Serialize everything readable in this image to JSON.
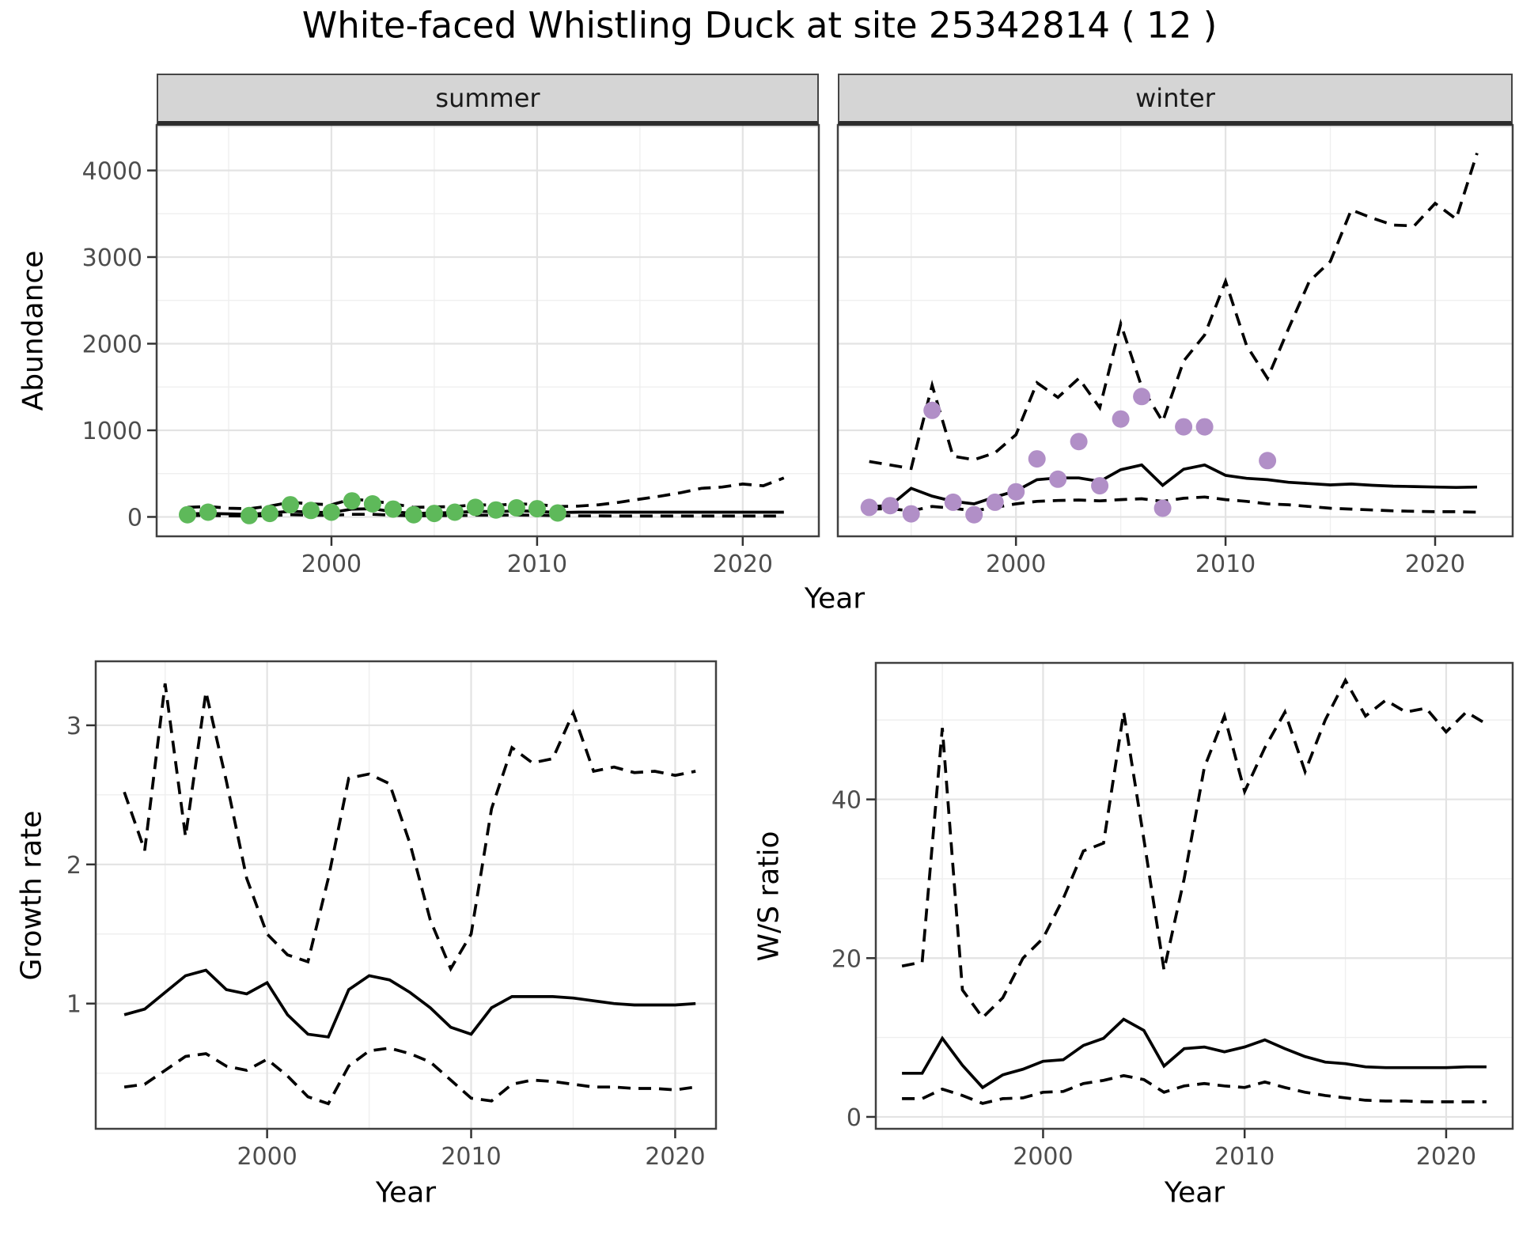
{
  "title": "White-faced Whistling Duck at site 25342814 ( 12 )",
  "colors": {
    "summer_points": "#5EB95A",
    "winter_points": "#B18FC7",
    "line": "#000000",
    "grid_major": "#E3E3E3",
    "grid_minor": "#EFEFEF",
    "strip_bg": "#D5D5D5",
    "tick_text": "#4D4D4D",
    "panel_border": "#404040"
  },
  "chart_data": [
    {
      "id": "abundance-summer",
      "type": "line",
      "facet_label": "summer",
      "xlabel": "Year",
      "ylabel": "Abundance",
      "x": [
        1993,
        1994,
        1995,
        1996,
        1997,
        1998,
        1999,
        2000,
        2001,
        2002,
        2003,
        2004,
        2005,
        2006,
        2007,
        2008,
        2009,
        2010,
        2011,
        2012,
        2013,
        2014,
        2015,
        2016,
        2017,
        2018,
        2019,
        2020,
        2021,
        2022
      ],
      "series": [
        {
          "name": "upper_ci",
          "style": "dashed",
          "values": [
            110,
            120,
            100,
            95,
            125,
            170,
            150,
            140,
            205,
            185,
            150,
            110,
            115,
            120,
            140,
            135,
            150,
            145,
            120,
            125,
            140,
            170,
            205,
            240,
            280,
            330,
            345,
            380,
            360,
            450
          ]
        },
        {
          "name": "median",
          "style": "solid",
          "values": [
            35,
            40,
            35,
            30,
            45,
            65,
            55,
            50,
            90,
            95,
            60,
            40,
            45,
            50,
            65,
            60,
            70,
            65,
            50,
            55,
            55,
            55,
            55,
            55,
            55,
            55,
            55,
            55,
            55,
            55
          ]
        },
        {
          "name": "lower_ci",
          "style": "dashed",
          "values": [
            15,
            18,
            12,
            10,
            15,
            25,
            20,
            18,
            30,
            30,
            20,
            12,
            15,
            15,
            20,
            20,
            22,
            20,
            15,
            12,
            12,
            10,
            10,
            10,
            10,
            10,
            10,
            10,
            10,
            10
          ]
        }
      ],
      "points": {
        "name": "observed-counts-summer",
        "color_key": "summer_points",
        "years": [
          1993,
          1994,
          1996,
          1997,
          1998,
          1999,
          2000,
          2001,
          2002,
          2003,
          2004,
          2005,
          2006,
          2007,
          2008,
          2009,
          2010,
          2011
        ],
        "values": [
          25,
          55,
          15,
          40,
          140,
          75,
          55,
          185,
          150,
          90,
          25,
          40,
          55,
          110,
          80,
          105,
          95,
          45
        ]
      },
      "xlim": [
        1991.5,
        2023.7
      ],
      "ylim": [
        -224,
        4525
      ],
      "xticks": [
        2000,
        2010,
        2020
      ],
      "xtick_labels": [
        "2000",
        "2010",
        "2020"
      ],
      "x_minor": [
        1995,
        2005,
        2015
      ],
      "yticks": [
        0,
        1000,
        2000,
        3000,
        4000
      ],
      "ytick_labels": [
        "0",
        "1000",
        "2000",
        "3000",
        "4000"
      ],
      "y_minor": [
        500,
        1500,
        2500,
        3500,
        4500
      ],
      "grid": true,
      "legend": "none"
    },
    {
      "id": "abundance-winter",
      "type": "line",
      "facet_label": "winter",
      "xlabel": "Year",
      "ylabel": "Abundance",
      "x": [
        1993,
        1994,
        1995,
        1996,
        1997,
        1998,
        1999,
        2000,
        2001,
        2002,
        2003,
        2004,
        2005,
        2006,
        2007,
        2008,
        2009,
        2010,
        2011,
        2012,
        2013,
        2014,
        2015,
        2016,
        2017,
        2018,
        2019,
        2020,
        2021,
        2022
      ],
      "series": [
        {
          "name": "upper_ci",
          "style": "dashed",
          "values": [
            640,
            600,
            560,
            1520,
            700,
            660,
            740,
            950,
            1550,
            1380,
            1600,
            1260,
            2230,
            1500,
            1100,
            1800,
            2100,
            2720,
            1980,
            1600,
            2170,
            2720,
            2950,
            3545,
            3450,
            3370,
            3360,
            3620,
            3440,
            4200
          ]
        },
        {
          "name": "median",
          "style": "solid",
          "values": [
            120,
            130,
            330,
            240,
            180,
            150,
            230,
            300,
            430,
            450,
            450,
            410,
            545,
            600,
            365,
            550,
            600,
            480,
            445,
            430,
            400,
            385,
            370,
            380,
            365,
            355,
            350,
            345,
            340,
            345
          ]
        },
        {
          "name": "lower_ci",
          "style": "dashed",
          "values": [
            90,
            95,
            70,
            120,
            100,
            70,
            110,
            150,
            180,
            190,
            195,
            185,
            200,
            210,
            180,
            215,
            230,
            200,
            180,
            150,
            140,
            120,
            100,
            90,
            80,
            70,
            65,
            60,
            60,
            55
          ]
        }
      ],
      "points": {
        "name": "observed-counts-winter",
        "color_key": "winter_points",
        "years": [
          1993,
          1994,
          1995,
          1996,
          1997,
          1998,
          1999,
          2000,
          2001,
          2002,
          2003,
          2004,
          2005,
          2006,
          2007,
          2008,
          2009,
          2012
        ],
        "values": [
          110,
          130,
          35,
          1230,
          170,
          25,
          170,
          290,
          670,
          435,
          870,
          360,
          1130,
          1390,
          100,
          1040,
          1040,
          650
        ]
      },
      "xlim": [
        1991.5,
        2023.7
      ],
      "ylim": [
        -224,
        4525
      ],
      "xticks": [
        2000,
        2010,
        2020
      ],
      "xtick_labels": [
        "2000",
        "2010",
        "2020"
      ],
      "x_minor": [
        1995,
        2005,
        2015
      ],
      "yticks": [
        0,
        1000,
        2000,
        3000,
        4000
      ],
      "ytick_labels": [
        "0",
        "1000",
        "2000",
        "3000",
        "4000"
      ],
      "y_minor": [
        500,
        1500,
        2500,
        3500,
        4500
      ],
      "grid": true,
      "legend": "none"
    },
    {
      "id": "growth-rate",
      "type": "line",
      "facet_label": "",
      "xlabel": "Year",
      "ylabel": "Growth rate",
      "x": [
        1993,
        1994,
        1995,
        1996,
        1997,
        1998,
        1999,
        2000,
        2001,
        2002,
        2003,
        2004,
        2005,
        2006,
        2007,
        2008,
        2009,
        2010,
        2011,
        2012,
        2013,
        2014,
        2015,
        2016,
        2017,
        2018,
        2019,
        2020,
        2021
      ],
      "series": [
        {
          "name": "upper_ci",
          "style": "dashed",
          "values": [
            2.52,
            2.1,
            3.3,
            2.2,
            3.24,
            2.6,
            1.9,
            1.5,
            1.35,
            1.3,
            1.9,
            2.62,
            2.65,
            2.58,
            2.15,
            1.6,
            1.25,
            1.5,
            2.4,
            2.84,
            2.73,
            2.76,
            3.09,
            2.67,
            2.7,
            2.66,
            2.67,
            2.64,
            2.67
          ]
        },
        {
          "name": "median",
          "style": "solid",
          "values": [
            0.92,
            0.96,
            1.08,
            1.2,
            1.24,
            1.1,
            1.07,
            1.15,
            0.92,
            0.78,
            0.76,
            1.1,
            1.2,
            1.17,
            1.08,
            0.97,
            0.83,
            0.78,
            0.97,
            1.05,
            1.05,
            1.05,
            1.04,
            1.02,
            1.0,
            0.99,
            0.99,
            0.99,
            1.0
          ]
        },
        {
          "name": "lower_ci",
          "style": "dashed",
          "values": [
            0.4,
            0.42,
            0.52,
            0.62,
            0.64,
            0.55,
            0.52,
            0.6,
            0.48,
            0.33,
            0.28,
            0.55,
            0.66,
            0.68,
            0.64,
            0.58,
            0.45,
            0.32,
            0.3,
            0.42,
            0.45,
            0.44,
            0.42,
            0.4,
            0.4,
            0.39,
            0.39,
            0.38,
            0.4
          ]
        }
      ],
      "xlim": [
        1991.6,
        2022.0
      ],
      "ylim": [
        0.1,
        3.46
      ],
      "xticks": [
        2000,
        2010,
        2020
      ],
      "xtick_labels": [
        "2000",
        "2010",
        "2020"
      ],
      "x_minor": [
        1995,
        2005,
        2015
      ],
      "yticks": [
        1,
        2,
        3
      ],
      "ytick_labels": [
        "1",
        "2",
        "3"
      ],
      "y_minor": [
        0.5,
        1.5,
        2.5
      ],
      "grid": true,
      "legend": "none"
    },
    {
      "id": "ws-ratio",
      "type": "line",
      "facet_label": "",
      "xlabel": "Year",
      "ylabel": "W/S ratio",
      "x": [
        1993,
        1994,
        1995,
        1996,
        1997,
        1998,
        1999,
        2000,
        2001,
        2002,
        2003,
        2004,
        2005,
        2006,
        2007,
        2008,
        2009,
        2010,
        2011,
        2012,
        2013,
        2014,
        2015,
        2016,
        2017,
        2018,
        2019,
        2020,
        2021,
        2022
      ],
      "series": [
        {
          "name": "upper_ci",
          "style": "dashed",
          "values": [
            19,
            19.5,
            49,
            16,
            12.5,
            15,
            20,
            22.5,
            27.5,
            33.5,
            34.5,
            51,
            35,
            18.5,
            30,
            44,
            50.5,
            41,
            46.5,
            51,
            43.5,
            50,
            55,
            50.5,
            52.5,
            51,
            51.5,
            48.5,
            51,
            49.5
          ]
        },
        {
          "name": "median",
          "style": "solid",
          "values": [
            5.5,
            5.5,
            9.9,
            6.5,
            3.7,
            5.3,
            6.0,
            7.0,
            7.2,
            9.0,
            9.9,
            12.3,
            10.9,
            6.4,
            8.6,
            8.8,
            8.2,
            8.8,
            9.7,
            8.6,
            7.6,
            6.9,
            6.7,
            6.3,
            6.2,
            6.2,
            6.2,
            6.2,
            6.3,
            6.3
          ]
        },
        {
          "name": "lower_ci",
          "style": "dashed",
          "values": [
            2.3,
            2.3,
            3.5,
            2.7,
            1.7,
            2.3,
            2.4,
            3.1,
            3.2,
            4.2,
            4.6,
            5.2,
            4.7,
            3.1,
            3.9,
            4.2,
            3.9,
            3.7,
            4.4,
            3.7,
            3.1,
            2.7,
            2.4,
            2.1,
            2.0,
            2.0,
            1.9,
            1.9,
            1.9,
            1.9
          ]
        }
      ],
      "xlim": [
        1991.7,
        2023.3
      ],
      "ylim": [
        -1.5,
        57.2
      ],
      "xticks": [
        2000,
        2010,
        2020
      ],
      "xtick_labels": [
        "2000",
        "2010",
        "2020"
      ],
      "x_minor": [
        1995,
        2005,
        2015
      ],
      "yticks": [
        0,
        20,
        40
      ],
      "ytick_labels": [
        "0",
        "20",
        "40"
      ],
      "y_minor": [
        10,
        30,
        50
      ],
      "grid": true,
      "legend": "none"
    }
  ]
}
